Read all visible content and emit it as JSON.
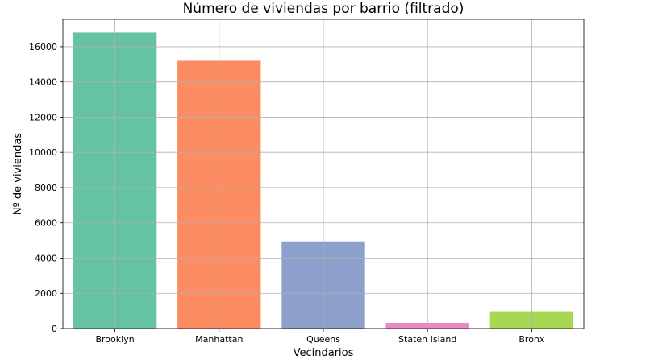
{
  "chart_data": {
    "type": "bar",
    "title": "Número de viviendas por barrio (filtrado)",
    "xlabel": "Vecindarios",
    "ylabel": "Nº de viviendas",
    "categories": [
      "Brooklyn",
      "Manhattan",
      "Queens",
      "Staten Island",
      "Bronx"
    ],
    "values": [
      16800,
      15200,
      4950,
      320,
      980
    ],
    "colors": [
      "#66c2a5",
      "#fc8d62",
      "#8da0cb",
      "#e78ac3",
      "#a6d854"
    ],
    "ylim": [
      0,
      17550
    ],
    "yticks": [
      0,
      2000,
      4000,
      6000,
      8000,
      10000,
      12000,
      14000,
      16000
    ],
    "grid": true,
    "legend": "none"
  }
}
